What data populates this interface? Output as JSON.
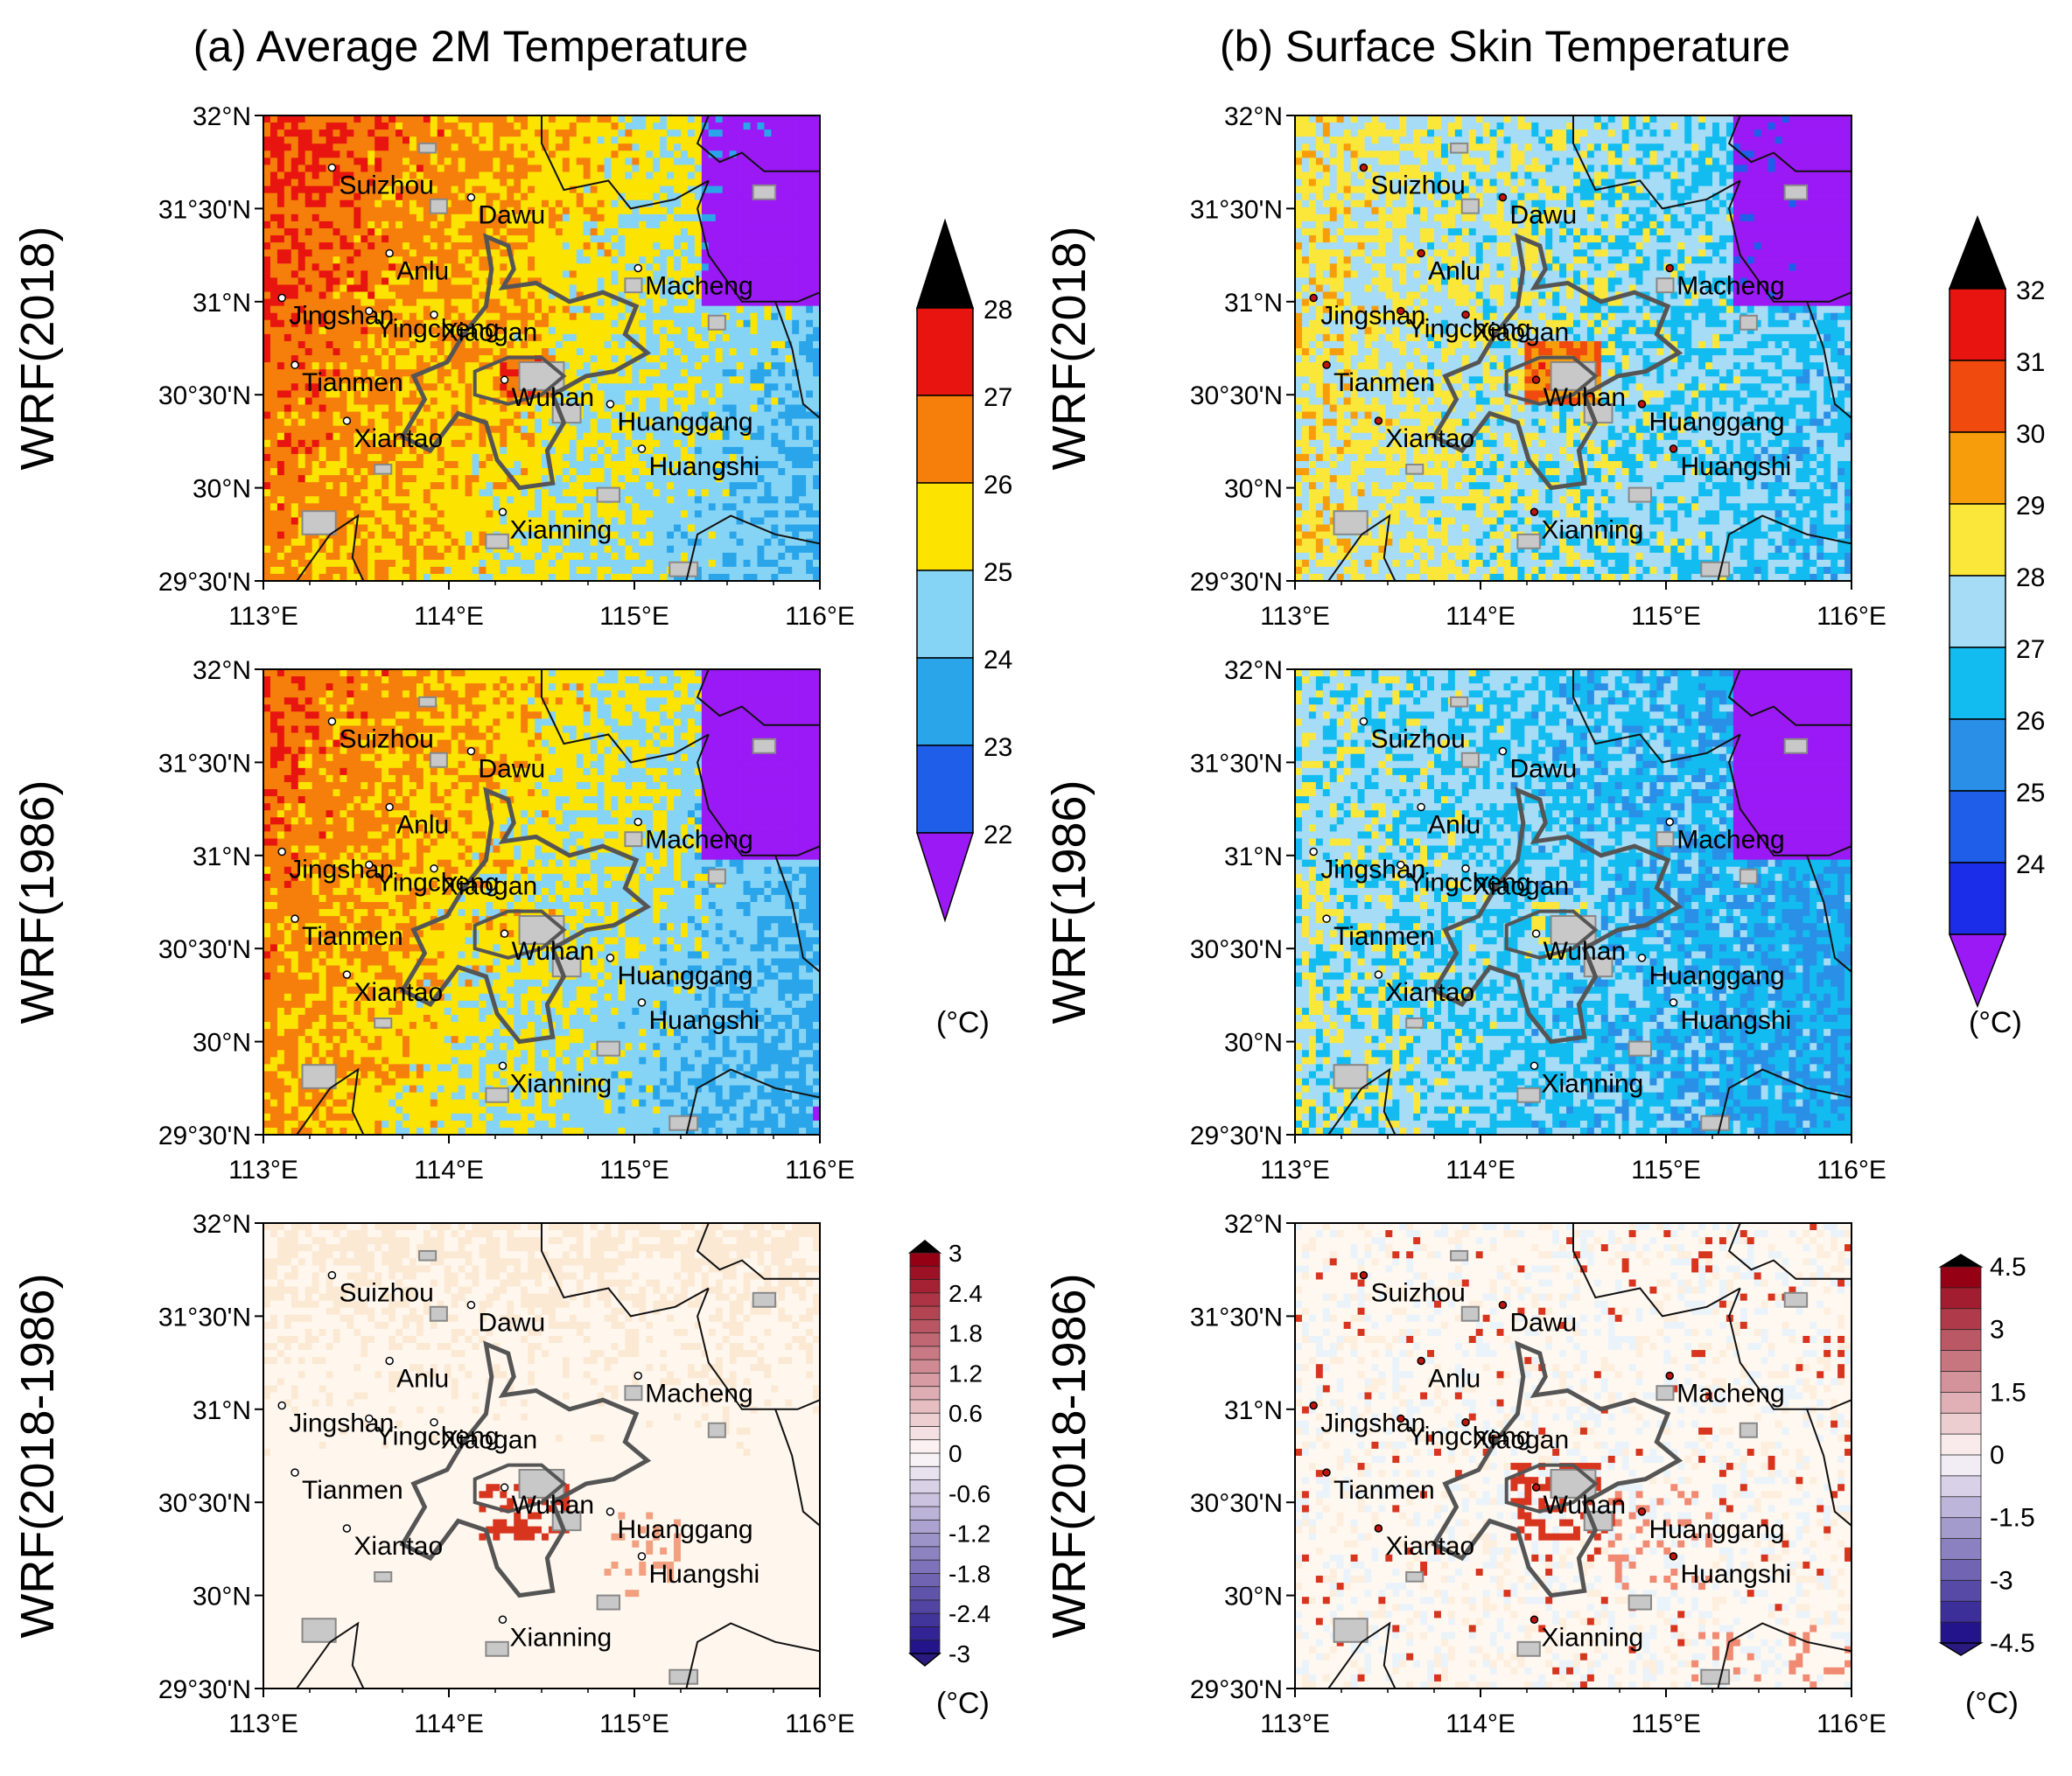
{
  "titles": {
    "col_a": "(a) Average 2M Temperature",
    "col_b": "(b) Surface Skin Temperature"
  },
  "row_labels": [
    "WRF(2018)",
    "WRF(1986)",
    "WRF(2018-1986)"
  ],
  "axes": {
    "lat_labels": [
      "32°N",
      "31°30'N",
      "31°N",
      "30°30'N",
      "30°N",
      "29°30'N"
    ],
    "lon_labels": [
      "113°E",
      "114°E",
      "115°E",
      "116°E"
    ]
  },
  "cities": [
    {
      "name": "Suizhou",
      "lon": 113.37,
      "lat": 31.72
    },
    {
      "name": "Dawu",
      "lon": 114.12,
      "lat": 31.56
    },
    {
      "name": "Anlu",
      "lon": 113.68,
      "lat": 31.26
    },
    {
      "name": "Jingshan",
      "lon": 113.1,
      "lat": 31.02
    },
    {
      "name": "Xiaogan",
      "lon": 113.92,
      "lat": 30.93
    },
    {
      "name": "Macheng",
      "lon": 115.02,
      "lat": 31.18
    },
    {
      "name": "Yingcheng",
      "lon": 113.57,
      "lat": 30.95
    },
    {
      "name": "Tianmen",
      "lon": 113.17,
      "lat": 30.66
    },
    {
      "name": "Xiantao",
      "lon": 113.45,
      "lat": 30.36
    },
    {
      "name": "Wuhan",
      "lon": 114.3,
      "lat": 30.58
    },
    {
      "name": "Huanggang",
      "lon": 114.87,
      "lat": 30.45
    },
    {
      "name": "Huangshi",
      "lon": 115.04,
      "lat": 30.21
    },
    {
      "name": "Xianning",
      "lon": 114.29,
      "lat": 29.87
    }
  ],
  "colorbars": {
    "t2m": {
      "labels": [
        "28",
        "27",
        "26",
        "25",
        "24",
        "23",
        "22"
      ],
      "colors": [
        "#000000",
        "#e8140f",
        "#f57f0a",
        "#fce300",
        "#86d4f5",
        "#2aa5ea",
        "#1f5ee8",
        "#9b19f5"
      ]
    },
    "tsk": {
      "labels": [
        "32",
        "31",
        "30",
        "29",
        "28",
        "27",
        "26",
        "25",
        "24"
      ],
      "colors": [
        "#000000",
        "#e8140f",
        "#f04a0e",
        "#f79d0b",
        "#fbe63a",
        "#a6dcf5",
        "#12bcf0",
        "#2a8fe6",
        "#1f5ee8",
        "#1b2de8",
        "#9b19f5"
      ]
    },
    "diff_t2m": {
      "labels": [
        "3",
        "2.4",
        "1.8",
        "1.2",
        "0.6",
        "0",
        "-0.6",
        "-1.2",
        "-1.8",
        "-2.4",
        "-3"
      ]
    },
    "diff_tsk": {
      "labels": [
        "4.5",
        "3",
        "1.5",
        "0",
        "-1.5",
        "-3",
        "-4.5"
      ]
    },
    "unit": "(°C)"
  },
  "map_colors": {
    "background_orange": "#f57f0a",
    "background_red": "#e8140f",
    "background_yellow": "#fce300",
    "background_lightblue": "#86d4f5",
    "background_blue": "#2aa5ea",
    "background_purple": "#9b19f5",
    "urban_gray": "#c8c8c8",
    "outline": "#555555",
    "diff_cream": "#fbe9d4",
    "diff_red": "#d8351f"
  }
}
